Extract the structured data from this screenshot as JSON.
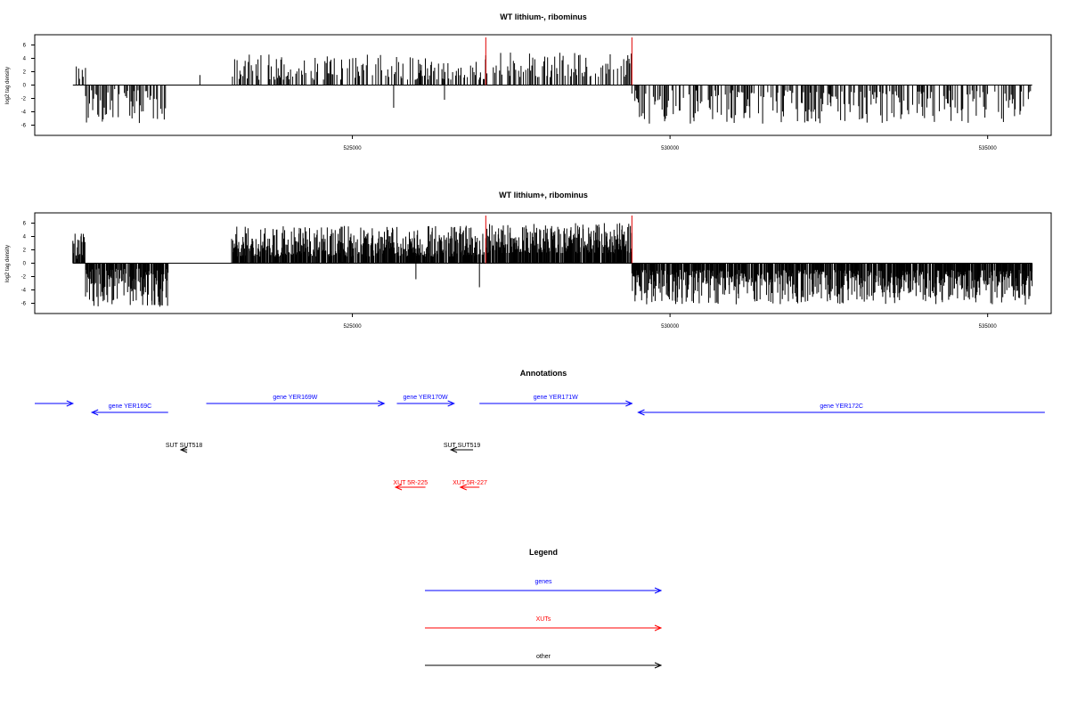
{
  "chart_data": [
    {
      "type": "bar",
      "title": "WT lithium-, ribominus",
      "xlabel": "",
      "ylabel": "log2 tag density",
      "xlim": [
        520000,
        536000
      ],
      "ylim": [
        -7,
        7
      ],
      "xticks": [
        525000,
        530000,
        535000
      ],
      "yticks": [
        -6,
        -4,
        -2,
        0,
        2,
        4,
        6
      ],
      "grid": false,
      "highlight_lines": [
        527100,
        529400
      ],
      "highlight_color": "#e00000",
      "density": 0.5,
      "segments": [
        {
          "from": 520600,
          "to": 520800,
          "sign": 1,
          "min": 0.6,
          "max": 3.2
        },
        {
          "from": 520800,
          "to": 522100,
          "sign": -1,
          "min": 0.6,
          "max": 5.8
        },
        {
          "from": 523100,
          "to": 527100,
          "sign": 1,
          "min": 0.8,
          "max": 4.6
        },
        {
          "from": 527100,
          "to": 529400,
          "sign": 1,
          "min": 1.2,
          "max": 5.0
        },
        {
          "from": 529400,
          "to": 535700,
          "sign": -1,
          "min": 0.8,
          "max": 5.8
        }
      ],
      "sparse_spikes": [
        {
          "x": 525650,
          "v": -3.4
        },
        {
          "x": 526450,
          "v": -2.2
        },
        {
          "x": 522600,
          "v": 1.5
        }
      ]
    },
    {
      "type": "bar",
      "title": "WT lithium+, ribominus",
      "xlabel": "",
      "ylabel": "log2 tag density",
      "xlim": [
        520000,
        536000
      ],
      "ylim": [
        -7,
        7
      ],
      "xticks": [
        525000,
        530000,
        535000
      ],
      "yticks": [
        -6,
        -4,
        -2,
        0,
        2,
        4,
        6
      ],
      "grid": false,
      "highlight_lines": [
        527100,
        529400
      ],
      "highlight_color": "#e00000",
      "density": 1.0,
      "segments": [
        {
          "from": 520600,
          "to": 520800,
          "sign": 1,
          "min": 0.6,
          "max": 4.6
        },
        {
          "from": 520800,
          "to": 522100,
          "sign": -1,
          "min": 0.8,
          "max": 6.6
        },
        {
          "from": 523100,
          "to": 527100,
          "sign": 1,
          "min": 1.0,
          "max": 5.6
        },
        {
          "from": 527100,
          "to": 529400,
          "sign": 1,
          "min": 1.5,
          "max": 6.0
        },
        {
          "from": 529400,
          "to": 535700,
          "sign": -1,
          "min": 1.0,
          "max": 6.2
        }
      ],
      "sparse_spikes": [
        {
          "x": 527000,
          "v": -3.6
        },
        {
          "x": 526000,
          "v": -2.4
        }
      ]
    }
  ],
  "annotations": {
    "title": "Annotations",
    "genes": [
      {
        "label": "",
        "from": 520000,
        "to": 520600,
        "strand": "+",
        "row": 0
      },
      {
        "label": "gene YER169C",
        "from": 520900,
        "to": 522100,
        "strand": "-",
        "row": 1
      },
      {
        "label": "gene YER169W",
        "from": 522700,
        "to": 525500,
        "strand": "+",
        "row": 0
      },
      {
        "label": "gene YER170W",
        "from": 525700,
        "to": 526600,
        "strand": "+",
        "row": 0
      },
      {
        "label": "gene YER171W",
        "from": 527000,
        "to": 529400,
        "strand": "+",
        "row": 0
      },
      {
        "label": "gene YER172C",
        "from": 529500,
        "to": 535900,
        "strand": "-",
        "row": 1
      }
    ],
    "other": [
      {
        "label": "SUT SUT518",
        "from": 522300,
        "to": 522400,
        "strand": "-"
      },
      {
        "label": "SUT SUT519",
        "from": 526550,
        "to": 526900,
        "strand": "-"
      }
    ],
    "xuts": [
      {
        "label": "XUT 5R-225",
        "from": 525680,
        "to": 526150,
        "strand": "-"
      },
      {
        "label": "XUT 5R-227",
        "from": 526700,
        "to": 527000,
        "strand": "-"
      }
    ]
  },
  "legend": {
    "title": "Legend",
    "items": [
      {
        "label": "genes",
        "color": "#0000ff"
      },
      {
        "label": "XUTs",
        "color": "#ff0000"
      },
      {
        "label": "other",
        "color": "#000000"
      }
    ]
  },
  "colors": {
    "gene": "#0000ff",
    "xut": "#ff0000",
    "other": "#000000",
    "highlight": "#e00000"
  }
}
